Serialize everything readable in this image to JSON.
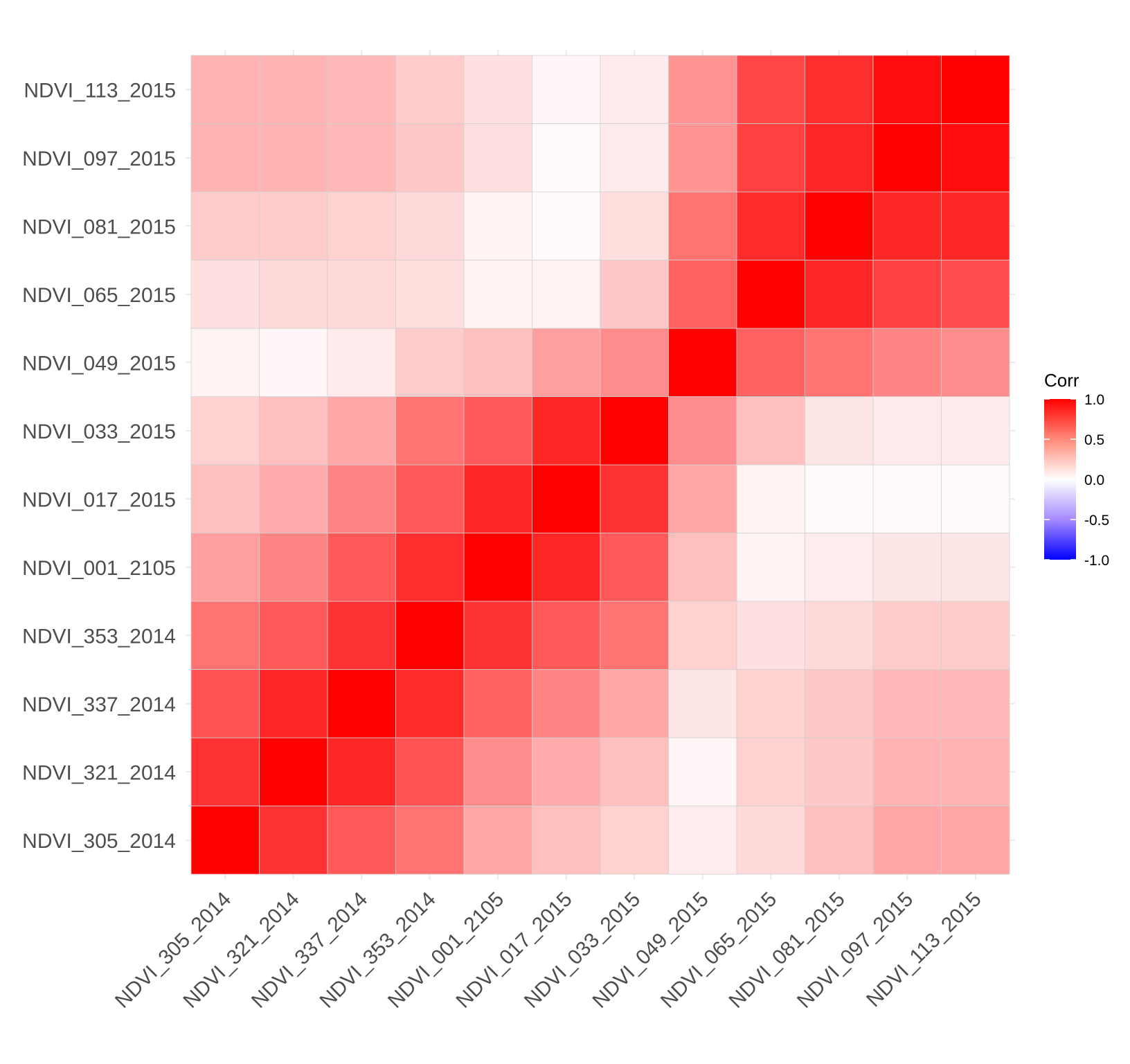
{
  "chart_data": {
    "type": "heatmap",
    "title": "",
    "xlabel": "",
    "ylabel": "",
    "x_categories": [
      "NDVI_305_2014",
      "NDVI_321_2014",
      "NDVI_337_2014",
      "NDVI_353_2014",
      "NDVI_001_2105",
      "NDVI_017_2015",
      "NDVI_033_2015",
      "NDVI_049_2015",
      "NDVI_065_2015",
      "NDVI_081_2015",
      "NDVI_097_2015",
      "NDVI_113_2015"
    ],
    "y_categories": [
      "NDVI_305_2014",
      "NDVI_321_2014",
      "NDVI_337_2014",
      "NDVI_353_2014",
      "NDVI_001_2105",
      "NDVI_017_2015",
      "NDVI_033_2015",
      "NDVI_049_2015",
      "NDVI_065_2015",
      "NDVI_081_2015",
      "NDVI_097_2015",
      "NDVI_113_2015"
    ],
    "values": [
      [
        1.0,
        0.8,
        0.65,
        0.55,
        0.35,
        0.25,
        0.18,
        0.07,
        0.15,
        0.25,
        0.35,
        0.35
      ],
      [
        0.8,
        1.0,
        0.85,
        0.68,
        0.45,
        0.33,
        0.25,
        0.03,
        0.18,
        0.22,
        0.3,
        0.3
      ],
      [
        0.68,
        0.85,
        1.0,
        0.83,
        0.62,
        0.48,
        0.35,
        0.1,
        0.18,
        0.22,
        0.28,
        0.28
      ],
      [
        0.55,
        0.65,
        0.8,
        1.0,
        0.8,
        0.65,
        0.55,
        0.18,
        0.12,
        0.15,
        0.2,
        0.2
      ],
      [
        0.38,
        0.48,
        0.65,
        0.82,
        1.0,
        0.85,
        0.65,
        0.25,
        0.05,
        0.07,
        0.1,
        0.1
      ],
      [
        0.25,
        0.33,
        0.48,
        0.65,
        0.85,
        1.0,
        0.8,
        0.35,
        0.05,
        0.02,
        0.02,
        0.02
      ],
      [
        0.18,
        0.25,
        0.35,
        0.55,
        0.65,
        0.85,
        1.0,
        0.45,
        0.25,
        0.1,
        0.08,
        0.08
      ],
      [
        0.05,
        0.03,
        0.08,
        0.2,
        0.25,
        0.38,
        0.45,
        1.0,
        0.62,
        0.55,
        0.48,
        0.45
      ],
      [
        0.12,
        0.15,
        0.15,
        0.13,
        0.05,
        0.05,
        0.22,
        0.62,
        1.0,
        0.85,
        0.75,
        0.7
      ],
      [
        0.2,
        0.2,
        0.18,
        0.15,
        0.05,
        0.02,
        0.13,
        0.55,
        0.83,
        1.0,
        0.85,
        0.85
      ],
      [
        0.3,
        0.3,
        0.28,
        0.22,
        0.12,
        0.02,
        0.08,
        0.42,
        0.75,
        0.85,
        1.0,
        0.95
      ],
      [
        0.3,
        0.3,
        0.28,
        0.2,
        0.12,
        0.03,
        0.08,
        0.42,
        0.72,
        0.82,
        0.95,
        1.0
      ]
    ],
    "color_scale": {
      "low": "#0000ff",
      "mid": "#ffffff",
      "high": "#ff0000",
      "limits": [
        -1,
        1
      ]
    },
    "legend": {
      "title": "Corr",
      "position": "right",
      "ticks": [
        1.0,
        0.5,
        0.0,
        -0.5,
        -1.0
      ],
      "tick_labels": [
        "1.0",
        "0.5",
        "0.0",
        "-0.5",
        "-1.0"
      ]
    },
    "grid": true
  }
}
